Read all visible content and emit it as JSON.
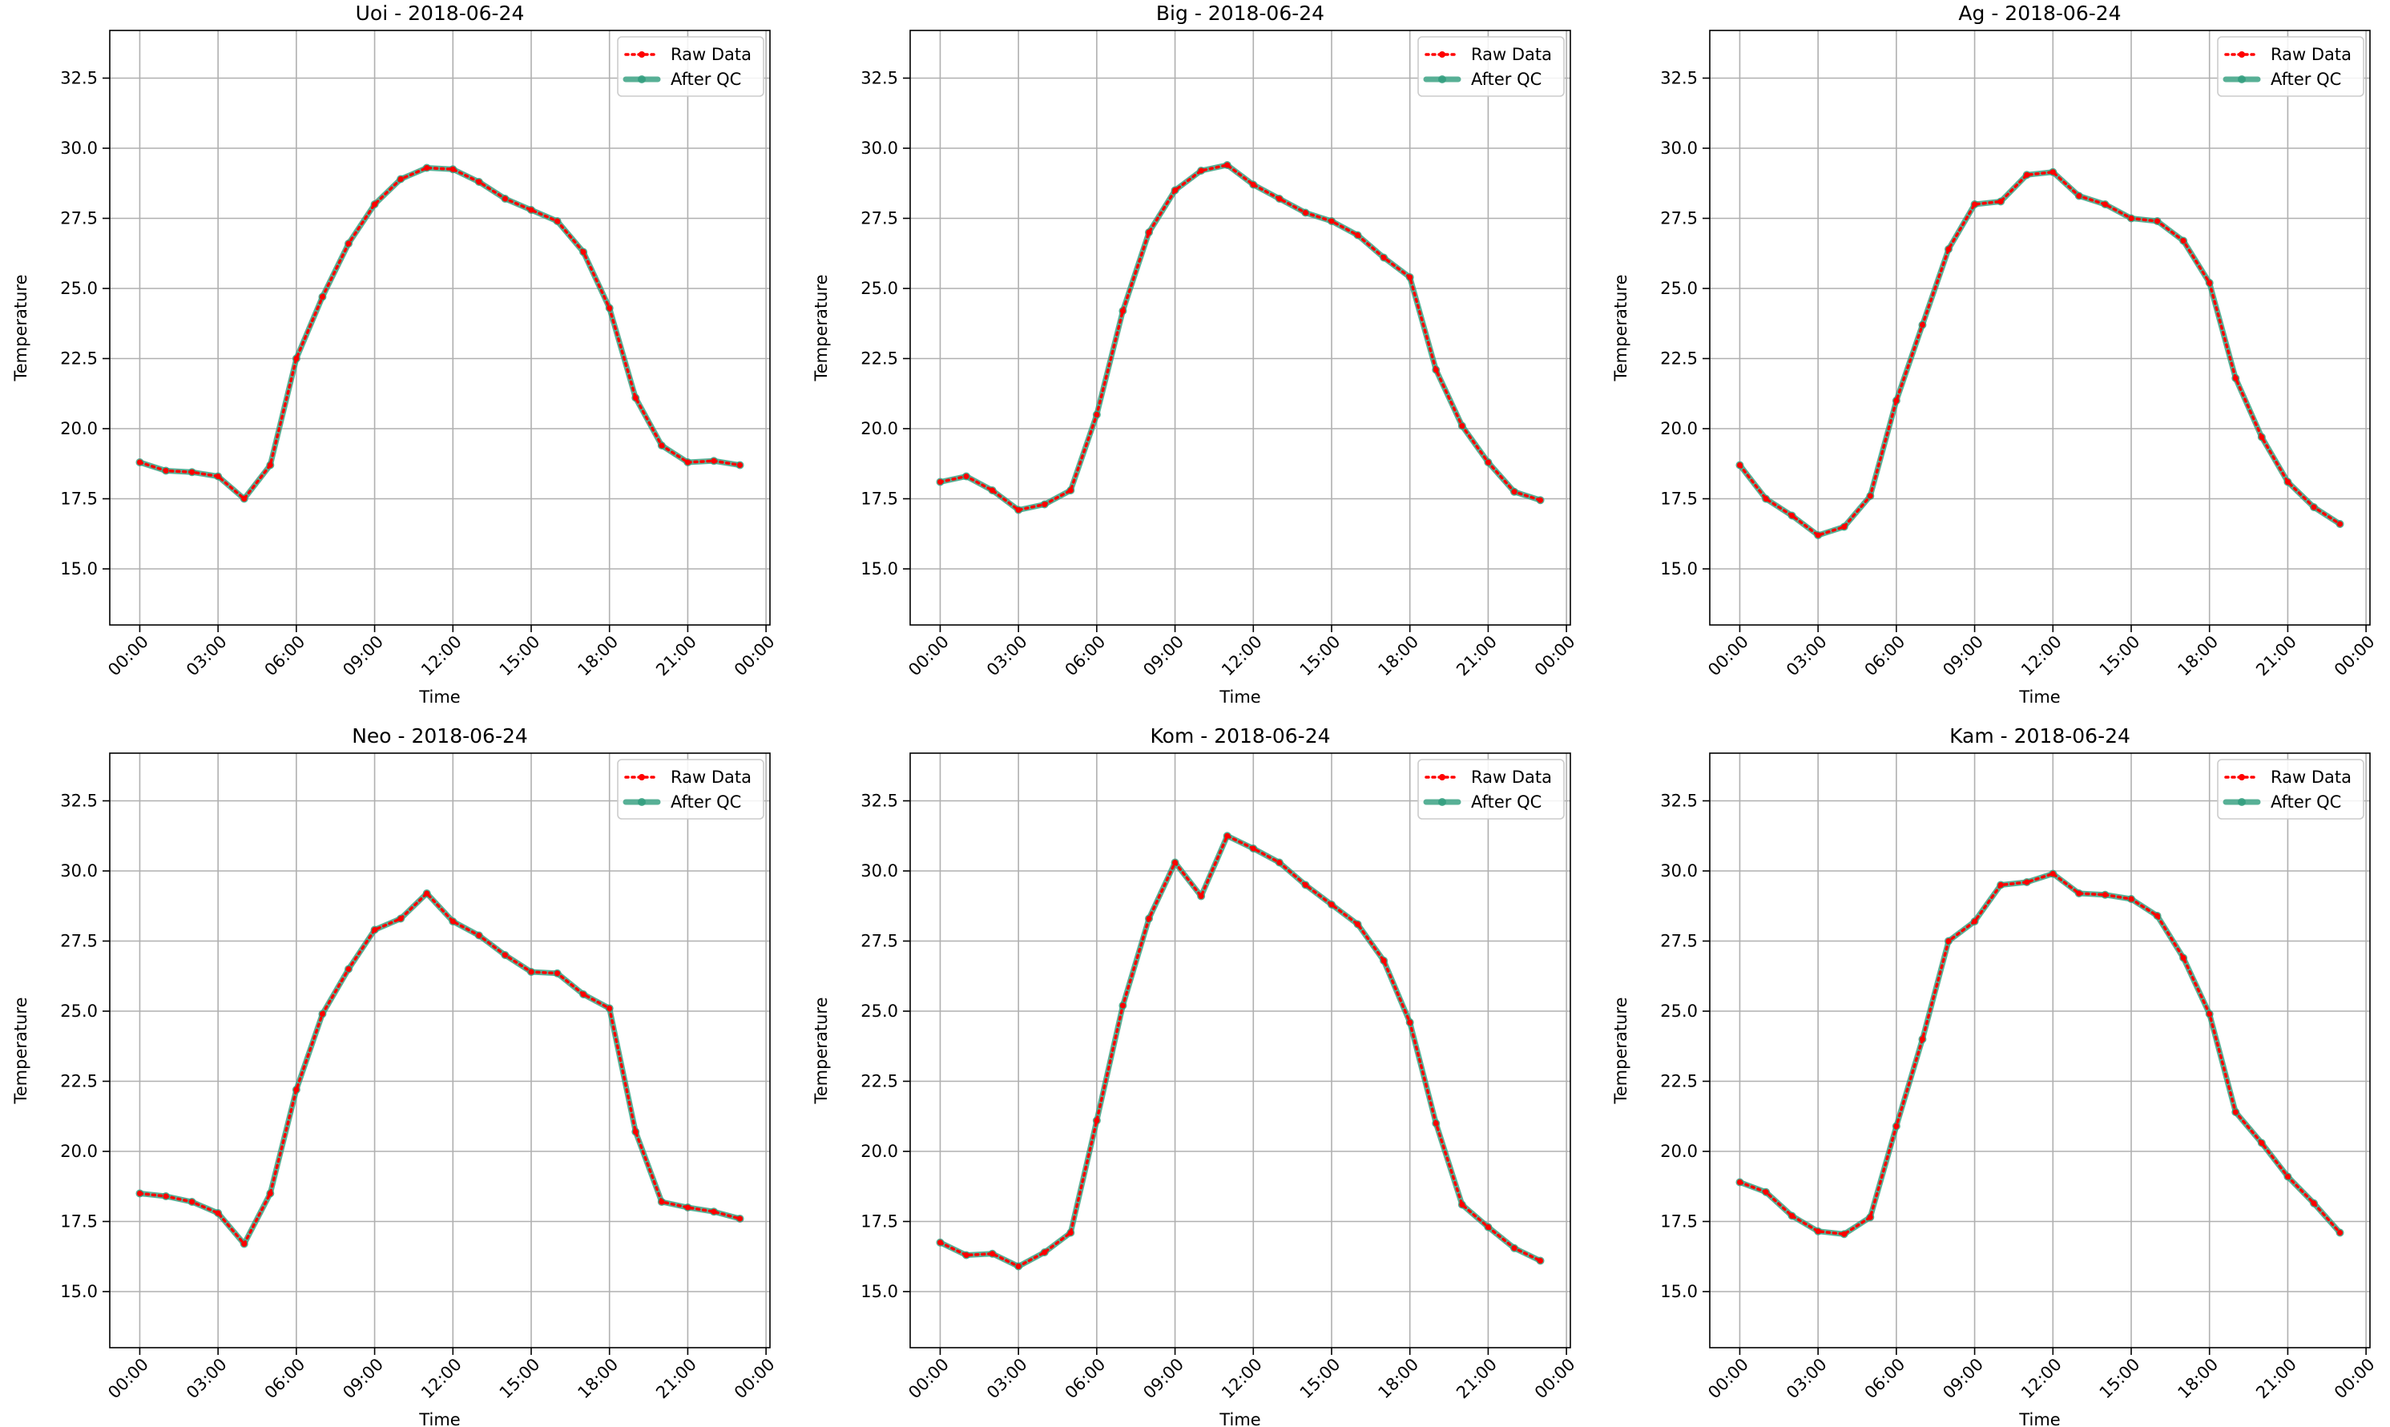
{
  "chart_data": [
    {
      "type": "line",
      "title": "Uoi - 2018-06-24",
      "xlabel": "Time",
      "ylabel": "Temperature",
      "ylim": [
        13.0,
        34.2
      ],
      "xlim_hours": [
        -1.15,
        24.15
      ],
      "yticks": [
        15.0,
        17.5,
        20.0,
        22.5,
        25.0,
        27.5,
        30.0,
        32.5
      ],
      "ytick_labels": [
        "15.0",
        "17.5",
        "20.0",
        "22.5",
        "25.0",
        "27.5",
        "30.0",
        "32.5"
      ],
      "xticks_hours": [
        0,
        3,
        6,
        9,
        12,
        15,
        18,
        21,
        24
      ],
      "xtick_labels": [
        "00:00",
        "03:00",
        "06:00",
        "09:00",
        "12:00",
        "15:00",
        "18:00",
        "21:00",
        "00:00"
      ],
      "grid": true,
      "legend": "top-right",
      "x_hours": [
        0,
        1,
        2,
        3,
        4,
        5,
        6,
        7,
        8,
        9,
        10,
        11,
        12,
        13,
        14,
        15,
        16,
        17,
        18,
        19,
        20,
        21,
        22,
        23
      ],
      "series": [
        {
          "name": "Raw Data",
          "color": "#ff0000",
          "style": "dotted",
          "values": [
            18.8,
            18.5,
            18.45,
            18.3,
            17.5,
            18.7,
            22.5,
            24.7,
            26.6,
            28.0,
            28.9,
            29.3,
            29.25,
            28.8,
            28.2,
            27.8,
            27.4,
            26.3,
            24.3,
            21.1,
            19.4,
            18.8,
            18.85,
            18.7
          ]
        },
        {
          "name": "After QC",
          "color": "#2e9c7c",
          "style": "solid",
          "values": [
            18.8,
            18.5,
            18.45,
            18.3,
            17.5,
            18.7,
            22.5,
            24.7,
            26.6,
            28.0,
            28.9,
            29.3,
            29.25,
            28.8,
            28.2,
            27.8,
            27.4,
            26.3,
            24.3,
            21.1,
            19.4,
            18.8,
            18.85,
            18.7
          ]
        }
      ]
    },
    {
      "type": "line",
      "title": "Big - 2018-06-24",
      "xlabel": "Time",
      "ylabel": "Temperature",
      "ylim": [
        13.0,
        34.2
      ],
      "xlim_hours": [
        -1.15,
        24.15
      ],
      "yticks": [
        15.0,
        17.5,
        20.0,
        22.5,
        25.0,
        27.5,
        30.0,
        32.5
      ],
      "ytick_labels": [
        "15.0",
        "17.5",
        "20.0",
        "22.5",
        "25.0",
        "27.5",
        "30.0",
        "32.5"
      ],
      "xticks_hours": [
        0,
        3,
        6,
        9,
        12,
        15,
        18,
        21,
        24
      ],
      "xtick_labels": [
        "00:00",
        "03:00",
        "06:00",
        "09:00",
        "12:00",
        "15:00",
        "18:00",
        "21:00",
        "00:00"
      ],
      "grid": true,
      "legend": "top-right",
      "x_hours": [
        0,
        1,
        2,
        3,
        4,
        5,
        6,
        7,
        8,
        9,
        10,
        11,
        12,
        13,
        14,
        15,
        16,
        17,
        18,
        19,
        20,
        21,
        22,
        23
      ],
      "series": [
        {
          "name": "Raw Data",
          "color": "#ff0000",
          "style": "dotted",
          "values": [
            18.1,
            18.3,
            17.8,
            17.1,
            17.3,
            17.8,
            20.5,
            24.2,
            27.0,
            28.5,
            29.2,
            29.4,
            28.7,
            28.2,
            27.7,
            27.4,
            26.9,
            26.1,
            25.4,
            22.1,
            20.1,
            18.8,
            17.75,
            17.45
          ]
        },
        {
          "name": "After QC",
          "color": "#2e9c7c",
          "style": "solid",
          "values": [
            18.1,
            18.3,
            17.8,
            17.1,
            17.3,
            17.8,
            20.5,
            24.2,
            27.0,
            28.5,
            29.2,
            29.4,
            28.7,
            28.2,
            27.7,
            27.4,
            26.9,
            26.1,
            25.4,
            22.1,
            20.1,
            18.8,
            17.75,
            17.45
          ]
        }
      ]
    },
    {
      "type": "line",
      "title": "Ag - 2018-06-24",
      "xlabel": "Time",
      "ylabel": "Temperature",
      "ylim": [
        13.0,
        34.2
      ],
      "xlim_hours": [
        -1.15,
        24.15
      ],
      "yticks": [
        15.0,
        17.5,
        20.0,
        22.5,
        25.0,
        27.5,
        30.0,
        32.5
      ],
      "ytick_labels": [
        "15.0",
        "17.5",
        "20.0",
        "22.5",
        "25.0",
        "27.5",
        "30.0",
        "32.5"
      ],
      "xticks_hours": [
        0,
        3,
        6,
        9,
        12,
        15,
        18,
        21,
        24
      ],
      "xtick_labels": [
        "00:00",
        "03:00",
        "06:00",
        "09:00",
        "12:00",
        "15:00",
        "18:00",
        "21:00",
        "00:00"
      ],
      "grid": true,
      "legend": "top-right",
      "x_hours": [
        0,
        1,
        2,
        3,
        4,
        5,
        6,
        7,
        8,
        9,
        10,
        11,
        12,
        13,
        14,
        15,
        16,
        17,
        18,
        19,
        20,
        21,
        22,
        23
      ],
      "series": [
        {
          "name": "Raw Data",
          "color": "#ff0000",
          "style": "dotted",
          "values": [
            18.7,
            17.5,
            16.9,
            16.2,
            16.5,
            17.6,
            21.0,
            23.7,
            26.4,
            28.0,
            28.1,
            29.05,
            29.15,
            28.3,
            28.0,
            27.5,
            27.4,
            26.7,
            25.2,
            21.8,
            19.7,
            18.1,
            17.2,
            16.6
          ]
        },
        {
          "name": "After QC",
          "color": "#2e9c7c",
          "style": "solid",
          "values": [
            18.7,
            17.5,
            16.9,
            16.2,
            16.5,
            17.6,
            21.0,
            23.7,
            26.4,
            28.0,
            28.1,
            29.05,
            29.15,
            28.3,
            28.0,
            27.5,
            27.4,
            26.7,
            25.2,
            21.8,
            19.7,
            18.1,
            17.2,
            16.6
          ]
        }
      ]
    },
    {
      "type": "line",
      "title": "Neo - 2018-06-24",
      "xlabel": "Time",
      "ylabel": "Temperature",
      "ylim": [
        13.0,
        34.2
      ],
      "xlim_hours": [
        -1.15,
        24.15
      ],
      "yticks": [
        15.0,
        17.5,
        20.0,
        22.5,
        25.0,
        27.5,
        30.0,
        32.5
      ],
      "ytick_labels": [
        "15.0",
        "17.5",
        "20.0",
        "22.5",
        "25.0",
        "27.5",
        "30.0",
        "32.5"
      ],
      "xticks_hours": [
        0,
        3,
        6,
        9,
        12,
        15,
        18,
        21,
        24
      ],
      "xtick_labels": [
        "00:00",
        "03:00",
        "06:00",
        "09:00",
        "12:00",
        "15:00",
        "18:00",
        "21:00",
        "00:00"
      ],
      "grid": true,
      "legend": "top-right",
      "x_hours": [
        0,
        1,
        2,
        3,
        4,
        5,
        6,
        7,
        8,
        9,
        10,
        11,
        12,
        13,
        14,
        15,
        16,
        17,
        18,
        19,
        20,
        21,
        22,
        23
      ],
      "series": [
        {
          "name": "Raw Data",
          "color": "#ff0000",
          "style": "dotted",
          "values": [
            18.5,
            18.4,
            18.2,
            17.8,
            16.7,
            18.5,
            22.2,
            24.9,
            26.5,
            27.9,
            28.3,
            29.2,
            28.2,
            27.7,
            27.0,
            26.4,
            26.35,
            25.6,
            25.1,
            20.7,
            18.2,
            18.0,
            17.85,
            17.6
          ]
        },
        {
          "name": "After QC",
          "color": "#2e9c7c",
          "style": "solid",
          "values": [
            18.5,
            18.4,
            18.2,
            17.8,
            16.7,
            18.5,
            22.2,
            24.9,
            26.5,
            27.9,
            28.3,
            29.2,
            28.2,
            27.7,
            27.0,
            26.4,
            26.35,
            25.6,
            25.1,
            20.7,
            18.2,
            18.0,
            17.85,
            17.6
          ]
        }
      ]
    },
    {
      "type": "line",
      "title": "Kom - 2018-06-24",
      "xlabel": "Time",
      "ylabel": "Temperature",
      "ylim": [
        13.0,
        34.2
      ],
      "xlim_hours": [
        -1.15,
        24.15
      ],
      "yticks": [
        15.0,
        17.5,
        20.0,
        22.5,
        25.0,
        27.5,
        30.0,
        32.5
      ],
      "ytick_labels": [
        "15.0",
        "17.5",
        "20.0",
        "22.5",
        "25.0",
        "27.5",
        "30.0",
        "32.5"
      ],
      "xticks_hours": [
        0,
        3,
        6,
        9,
        12,
        15,
        18,
        21,
        24
      ],
      "xtick_labels": [
        "00:00",
        "03:00",
        "06:00",
        "09:00",
        "12:00",
        "15:00",
        "18:00",
        "21:00",
        "00:00"
      ],
      "grid": true,
      "legend": "top-right",
      "x_hours": [
        0,
        1,
        2,
        3,
        4,
        5,
        6,
        7,
        8,
        9,
        10,
        11,
        12,
        13,
        14,
        15,
        16,
        17,
        18,
        19,
        20,
        21,
        22,
        23
      ],
      "series": [
        {
          "name": "Raw Data",
          "color": "#ff0000",
          "style": "dotted",
          "values": [
            16.75,
            16.3,
            16.35,
            15.9,
            16.4,
            17.1,
            21.1,
            25.2,
            28.3,
            30.3,
            29.1,
            31.25,
            30.8,
            30.3,
            29.5,
            28.8,
            28.1,
            26.8,
            24.6,
            21.0,
            18.1,
            17.3,
            16.55,
            16.1
          ]
        },
        {
          "name": "After QC",
          "color": "#2e9c7c",
          "style": "solid",
          "values": [
            16.75,
            16.3,
            16.35,
            15.9,
            16.4,
            17.1,
            21.1,
            25.2,
            28.3,
            30.3,
            29.1,
            31.25,
            30.8,
            30.3,
            29.5,
            28.8,
            28.1,
            26.8,
            24.6,
            21.0,
            18.1,
            17.3,
            16.55,
            16.1
          ]
        }
      ]
    },
    {
      "type": "line",
      "title": "Kam - 2018-06-24",
      "xlabel": "Time",
      "ylabel": "Temperature",
      "ylim": [
        13.0,
        34.2
      ],
      "xlim_hours": [
        -1.15,
        24.15
      ],
      "yticks": [
        15.0,
        17.5,
        20.0,
        22.5,
        25.0,
        27.5,
        30.0,
        32.5
      ],
      "ytick_labels": [
        "15.0",
        "17.5",
        "20.0",
        "22.5",
        "25.0",
        "27.5",
        "30.0",
        "32.5"
      ],
      "xticks_hours": [
        0,
        3,
        6,
        9,
        12,
        15,
        18,
        21,
        24
      ],
      "xtick_labels": [
        "00:00",
        "03:00",
        "06:00",
        "09:00",
        "12:00",
        "15:00",
        "18:00",
        "21:00",
        "00:00"
      ],
      "grid": true,
      "legend": "top-right",
      "x_hours": [
        0,
        1,
        2,
        3,
        4,
        5,
        6,
        7,
        8,
        9,
        10,
        11,
        12,
        13,
        14,
        15,
        16,
        17,
        18,
        19,
        20,
        21,
        22,
        23
      ],
      "series": [
        {
          "name": "Raw Data",
          "color": "#ff0000",
          "style": "dotted",
          "values": [
            18.9,
            18.55,
            17.7,
            17.15,
            17.05,
            17.65,
            20.9,
            24.0,
            27.5,
            28.2,
            29.5,
            29.6,
            29.9,
            29.2,
            29.15,
            29.0,
            28.4,
            26.9,
            24.9,
            21.4,
            20.3,
            19.1,
            18.15,
            17.1
          ]
        },
        {
          "name": "After QC",
          "color": "#2e9c7c",
          "style": "solid",
          "values": [
            18.9,
            18.55,
            17.7,
            17.15,
            17.05,
            17.65,
            20.9,
            24.0,
            27.5,
            28.2,
            29.5,
            29.6,
            29.9,
            29.2,
            29.15,
            29.0,
            28.4,
            26.9,
            24.9,
            21.4,
            20.3,
            19.1,
            18.15,
            17.1
          ]
        }
      ]
    }
  ]
}
